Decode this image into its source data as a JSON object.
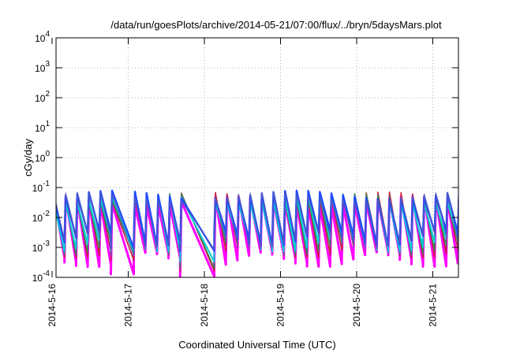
{
  "chart_data": {
    "type": "line",
    "title": "/data/run/goesPlots/archive/2014-05-21/07:00/flux/../bryn/5daysMars.plot",
    "xlabel": "Coordinated Universal Time (UTC)",
    "ylabel": "cGy/day",
    "yscale": "log",
    "ylim": [
      "1e-4",
      "1e4"
    ],
    "grid": true,
    "x_tick_labels": [
      "2014-5-16",
      "2014-5-17",
      "2014-5-18",
      "2014-5-19",
      "2014-5-20",
      "2014-5-21"
    ],
    "y_tick_labels": [
      {
        "base": "10",
        "exp": "-4"
      },
      {
        "base": "10",
        "exp": "-3"
      },
      {
        "base": "10",
        "exp": "-2"
      },
      {
        "base": "10",
        "exp": "-1"
      },
      {
        "base": "10",
        "exp": "0"
      },
      {
        "base": "10",
        "exp": "1"
      },
      {
        "base": "10",
        "exp": "2"
      },
      {
        "base": "10",
        "exp": "3"
      },
      {
        "base": "10",
        "exp": "4"
      }
    ],
    "series": [
      {
        "color": "#ff00ff",
        "peak_log": -1.45,
        "trough_log": -3.4,
        "lw": 3
      },
      {
        "color": "#c81e3c",
        "peak_log": -1.3,
        "trough_log": -3.1,
        "lw": 1.6
      },
      {
        "color": "#2e8b57",
        "peak_log": -1.35,
        "trough_log": -3.0,
        "lw": 1.4
      },
      {
        "color": "#00ced1",
        "peak_log": -1.38,
        "trough_log": -2.9,
        "lw": 2
      },
      {
        "color": "#1e4bff",
        "peak_log": -1.25,
        "trough_log": -2.7,
        "lw": 2.4
      },
      {
        "color": "#5a5ab4",
        "peak_log": -1.3,
        "trough_log": -2.8,
        "lw": 1
      }
    ]
  }
}
